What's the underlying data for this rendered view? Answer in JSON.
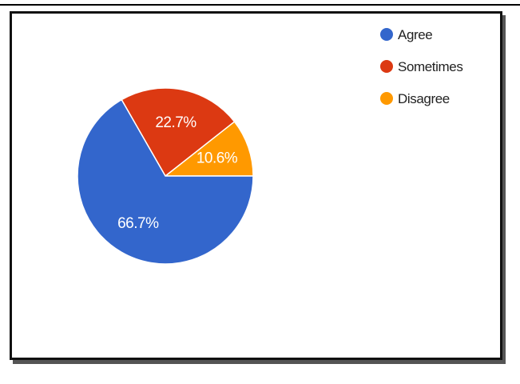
{
  "chart_data": {
    "type": "pie",
    "start_angle_deg": 0,
    "direction": "counterclockwise",
    "slices": [
      {
        "label": "Agree",
        "value": 66.7,
        "display": "66.7%",
        "color": "#3366cc"
      },
      {
        "label": "Sometimes",
        "value": 22.7,
        "display": "22.7%",
        "color": "#dc3912"
      },
      {
        "label": "Disagree",
        "value": 10.6,
        "display": "10.6%",
        "color": "#ff9900"
      }
    ],
    "legend_position": "top-right"
  }
}
